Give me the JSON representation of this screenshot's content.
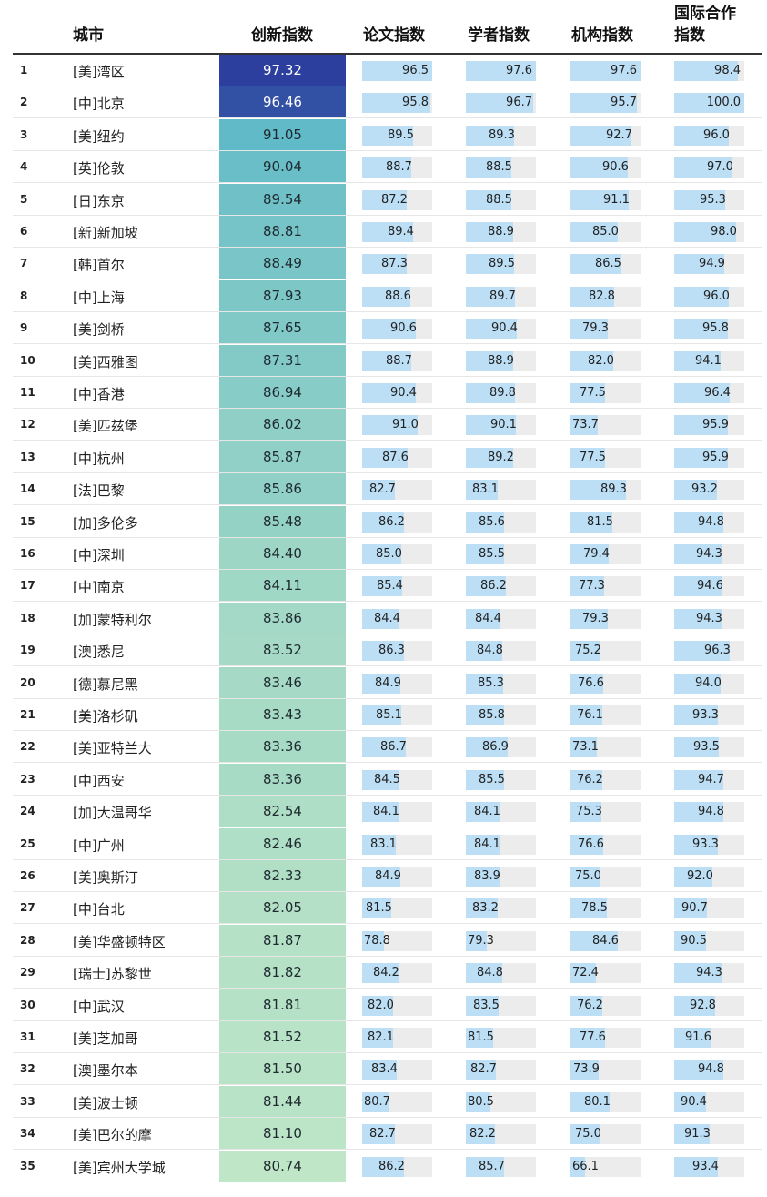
{
  "chart_data": {
    "type": "table",
    "columns": [
      "",
      "城市",
      "创新指数",
      "论文指数",
      "学者指数",
      "机构指数",
      "国际合作指数"
    ],
    "rows": [
      {
        "rank": "1",
        "city": "[美]湾区",
        "innovation": "97.32",
        "paper": "96.5",
        "scholar": "97.6",
        "institution": "97.6",
        "intl": "98.4"
      },
      {
        "rank": "2",
        "city": "[中]北京",
        "innovation": "96.46",
        "paper": "95.8",
        "scholar": "96.7",
        "institution": "95.7",
        "intl": "100.0"
      },
      {
        "rank": "3",
        "city": "[美]纽约",
        "innovation": "91.05",
        "paper": "89.5",
        "scholar": "89.3",
        "institution": "92.7",
        "intl": "96.0"
      },
      {
        "rank": "4",
        "city": "[英]伦敦",
        "innovation": "90.04",
        "paper": "88.7",
        "scholar": "88.5",
        "institution": "90.6",
        "intl": "97.0"
      },
      {
        "rank": "5",
        "city": "[日]东京",
        "innovation": "89.54",
        "paper": "87.2",
        "scholar": "88.5",
        "institution": "91.1",
        "intl": "95.3"
      },
      {
        "rank": "6",
        "city": "[新]新加坡",
        "innovation": "88.81",
        "paper": "89.4",
        "scholar": "88.9",
        "institution": "85.0",
        "intl": "98.0"
      },
      {
        "rank": "7",
        "city": "[韩]首尔",
        "innovation": "88.49",
        "paper": "87.3",
        "scholar": "89.5",
        "institution": "86.5",
        "intl": "94.9"
      },
      {
        "rank": "8",
        "city": "[中]上海",
        "innovation": "87.93",
        "paper": "88.6",
        "scholar": "89.7",
        "institution": "82.8",
        "intl": "96.0"
      },
      {
        "rank": "9",
        "city": "[美]剑桥",
        "innovation": "87.65",
        "paper": "90.6",
        "scholar": "90.4",
        "institution": "79.3",
        "intl": "95.8"
      },
      {
        "rank": "10",
        "city": "[美]西雅图",
        "innovation": "87.31",
        "paper": "88.7",
        "scholar": "88.9",
        "institution": "82.0",
        "intl": "94.1"
      },
      {
        "rank": "11",
        "city": "[中]香港",
        "innovation": "86.94",
        "paper": "90.4",
        "scholar": "89.8",
        "institution": "77.5",
        "intl": "96.4"
      },
      {
        "rank": "12",
        "city": "[美]匹兹堡",
        "innovation": "86.02",
        "paper": "91.0",
        "scholar": "90.1",
        "institution": "73.7",
        "intl": "95.9"
      },
      {
        "rank": "13",
        "city": "[中]杭州",
        "innovation": "85.87",
        "paper": "87.6",
        "scholar": "89.2",
        "institution": "77.5",
        "intl": "95.9"
      },
      {
        "rank": "14",
        "city": "[法]巴黎",
        "innovation": "85.86",
        "paper": "82.7",
        "scholar": "83.1",
        "institution": "89.3",
        "intl": "93.2"
      },
      {
        "rank": "15",
        "city": "[加]多伦多",
        "innovation": "85.48",
        "paper": "86.2",
        "scholar": "85.6",
        "institution": "81.5",
        "intl": "94.8"
      },
      {
        "rank": "16",
        "city": "[中]深圳",
        "innovation": "84.40",
        "paper": "85.0",
        "scholar": "85.5",
        "institution": "79.4",
        "intl": "94.3"
      },
      {
        "rank": "17",
        "city": "[中]南京",
        "innovation": "84.11",
        "paper": "85.4",
        "scholar": "86.2",
        "institution": "77.3",
        "intl": "94.6"
      },
      {
        "rank": "18",
        "city": "[加]蒙特利尔",
        "innovation": "83.86",
        "paper": "84.4",
        "scholar": "84.4",
        "institution": "79.3",
        "intl": "94.3"
      },
      {
        "rank": "19",
        "city": "[澳]悉尼",
        "innovation": "83.52",
        "paper": "86.3",
        "scholar": "84.8",
        "institution": "75.2",
        "intl": "96.3"
      },
      {
        "rank": "20",
        "city": "[德]慕尼黑",
        "innovation": "83.46",
        "paper": "84.9",
        "scholar": "85.3",
        "institution": "76.6",
        "intl": "94.0"
      },
      {
        "rank": "21",
        "city": "[美]洛杉矶",
        "innovation": "83.43",
        "paper": "85.1",
        "scholar": "85.8",
        "institution": "76.1",
        "intl": "93.3"
      },
      {
        "rank": "22",
        "city": "[美]亚特兰大",
        "innovation": "83.36",
        "paper": "86.7",
        "scholar": "86.9",
        "institution": "73.1",
        "intl": "93.5"
      },
      {
        "rank": "23",
        "city": "[中]西安",
        "innovation": "83.36",
        "paper": "84.5",
        "scholar": "85.5",
        "institution": "76.2",
        "intl": "94.7"
      },
      {
        "rank": "24",
        "city": "[加]大温哥华",
        "innovation": "82.54",
        "paper": "84.1",
        "scholar": "84.1",
        "institution": "75.3",
        "intl": "94.8"
      },
      {
        "rank": "25",
        "city": "[中]广州",
        "innovation": "82.46",
        "paper": "83.1",
        "scholar": "84.1",
        "institution": "76.6",
        "intl": "93.3"
      },
      {
        "rank": "26",
        "city": "[美]奥斯汀",
        "innovation": "82.33",
        "paper": "84.9",
        "scholar": "83.9",
        "institution": "75.0",
        "intl": "92.0"
      },
      {
        "rank": "27",
        "city": "[中]台北",
        "innovation": "82.05",
        "paper": "81.5",
        "scholar": "83.2",
        "institution": "78.5",
        "intl": "90.7"
      },
      {
        "rank": "28",
        "city": "[美]华盛顿特区",
        "innovation": "81.87",
        "paper": "78.8",
        "scholar": "79.3",
        "institution": "84.6",
        "intl": "90.5"
      },
      {
        "rank": "29",
        "city": "[瑞士]苏黎世",
        "innovation": "81.82",
        "paper": "84.2",
        "scholar": "84.8",
        "institution": "72.4",
        "intl": "94.3"
      },
      {
        "rank": "30",
        "city": "[中]武汉",
        "innovation": "81.81",
        "paper": "82.0",
        "scholar": "83.5",
        "institution": "76.2",
        "intl": "92.8"
      },
      {
        "rank": "31",
        "city": "[美]芝加哥",
        "innovation": "81.52",
        "paper": "82.1",
        "scholar": "81.5",
        "institution": "77.6",
        "intl": "91.6"
      },
      {
        "rank": "32",
        "city": "[澳]墨尔本",
        "innovation": "81.50",
        "paper": "83.4",
        "scholar": "82.7",
        "institution": "73.9",
        "intl": "94.8"
      },
      {
        "rank": "33",
        "city": "[美]波士顿",
        "innovation": "81.44",
        "paper": "80.7",
        "scholar": "80.5",
        "institution": "80.1",
        "intl": "90.4"
      },
      {
        "rank": "34",
        "city": "[美]巴尔的摩",
        "innovation": "81.10",
        "paper": "82.7",
        "scholar": "82.2",
        "institution": "75.0",
        "intl": "91.3"
      },
      {
        "rank": "35",
        "city": "[美]宾州大学城",
        "innovation": "80.74",
        "paper": "86.2",
        "scholar": "85.7",
        "institution": "66.1",
        "intl": "93.4"
      }
    ],
    "colors": {
      "heat_high": "#2c3f9e",
      "heat_mid": "#5db8c7",
      "heat_low": "#bfe6c6",
      "bar_fill": "#bcdff6",
      "bar_track": "#ececec"
    }
  },
  "header": {
    "city": "城市",
    "innovation": "创新指数",
    "paper": "论文指数",
    "scholar": "学者指数",
    "institution": "机构指数",
    "intl_line1": "国际合作",
    "intl_line2": "指数"
  }
}
